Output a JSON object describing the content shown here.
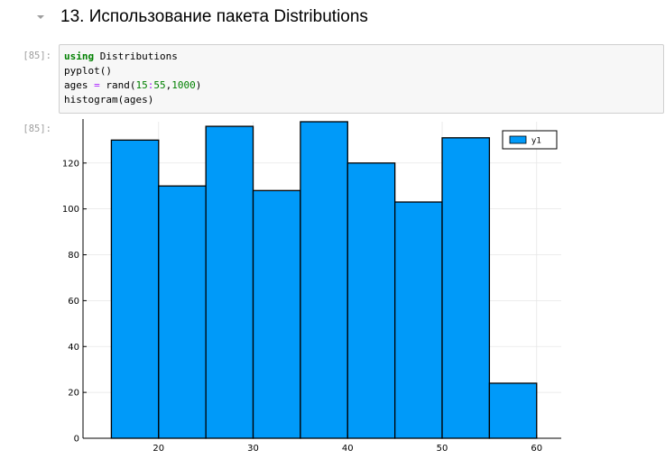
{
  "heading": {
    "title": "13. Использование пакета Distributions"
  },
  "cell": {
    "in_prompt": "[85]:",
    "out_prompt": "[85]:",
    "code": {
      "line1": {
        "kw": "using",
        "rest": " Distributions"
      },
      "line2": "pyplot()",
      "line3": {
        "a": "ages ",
        "op1": "=",
        "b": " rand(",
        "n1": "15",
        "op2": ":",
        "n2": "55",
        "c": ",",
        "n3": "1000",
        "d": ")"
      },
      "line4": "histogram(ages)"
    }
  },
  "colors": {
    "bar": "#009af9",
    "grid": "#e6e6e6",
    "axis": "#000000"
  },
  "chart_data": {
    "type": "bar",
    "bin_edges": [
      15,
      20,
      25,
      30,
      35,
      40,
      45,
      50,
      55,
      60
    ],
    "series": [
      {
        "name": "y1",
        "values": [
          130,
          110,
          136,
          108,
          138,
          120,
          103,
          131,
          24
        ]
      }
    ],
    "xticks": [
      "20",
      "30",
      "40",
      "50",
      "60"
    ],
    "yticks": [
      "0",
      "20",
      "40",
      "60",
      "80",
      "100",
      "120"
    ],
    "xlim": [
      12,
      62.6
    ],
    "ylim": [
      0,
      138
    ],
    "grid": true,
    "legend": "top-right",
    "title": "",
    "xlabel": "",
    "ylabel": ""
  }
}
